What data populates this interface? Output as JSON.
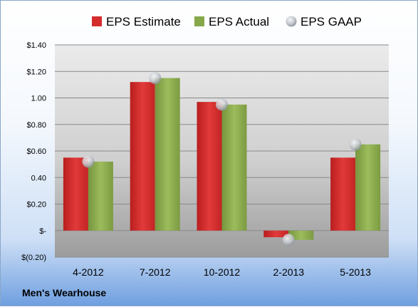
{
  "chart_data": {
    "type": "bar",
    "categories": [
      "4-2012",
      "7-2012",
      "10-2012",
      "2-2013",
      "5-2013"
    ],
    "series": [
      {
        "name": "EPS Estimate",
        "type": "bar",
        "color": "#d42b2b",
        "values": [
          0.55,
          1.12,
          0.97,
          -0.05,
          0.55
        ]
      },
      {
        "name": "EPS Actual",
        "type": "bar",
        "color": "#86a84a",
        "values": [
          0.52,
          1.15,
          0.95,
          -0.07,
          0.65
        ]
      },
      {
        "name": "EPS GAAP",
        "type": "scatter",
        "color": "#c8ccd2",
        "values": [
          0.52,
          1.15,
          0.95,
          -0.07,
          0.65
        ]
      }
    ],
    "yticks": [
      1.4,
      1.2,
      1.0,
      0.8,
      0.6,
      0.4,
      0.2,
      0,
      -0.2
    ],
    "ytick_labels": [
      "$1.40",
      "$1.20",
      "1.00",
      "$0.80",
      "$0.60",
      "0.40",
      "$0.20",
      "$-",
      "$(0.20)"
    ],
    "ylim": [
      -0.2,
      1.4
    ],
    "grid": true,
    "legend_position": "top"
  },
  "footer": {
    "company": "Men's Wearhouse"
  }
}
